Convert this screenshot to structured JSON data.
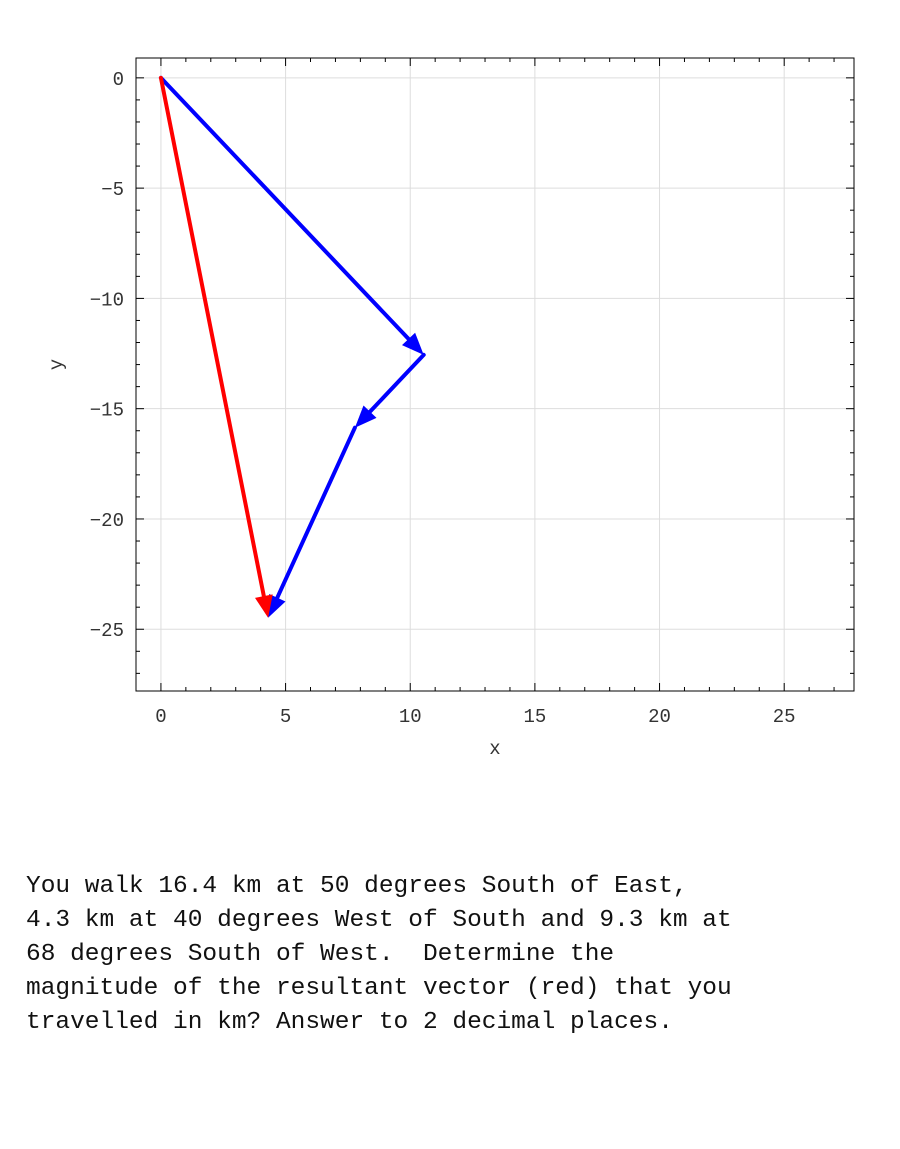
{
  "chart_data": {
    "type": "line",
    "title": "",
    "xlabel": "x",
    "ylabel": "y",
    "xlim": [
      -1,
      27.8
    ],
    "ylim": [
      -27.8,
      0.9
    ],
    "xticks": [
      0,
      5,
      10,
      15,
      20,
      25
    ],
    "yticks": [
      0,
      -5,
      -10,
      -15,
      -20,
      -25
    ],
    "grid": true,
    "series": [
      {
        "color": "#0000ff",
        "style": "arrows",
        "points": [
          [
            0,
            0
          ],
          [
            10.54,
            -12.56
          ],
          [
            7.78,
            -15.86
          ],
          [
            4.3,
            -24.48
          ]
        ]
      },
      {
        "color": "#ff0000",
        "style": "arrow",
        "points": [
          [
            0,
            0
          ],
          [
            4.3,
            -24.48
          ]
        ]
      }
    ]
  },
  "question": {
    "line1": "You walk 16.4 km at 50 degrees South of East,",
    "line2": "4.3 km at 40 degrees West of South and 9.3 km at",
    "line3": "68 degrees South of West.  Determine the",
    "line4": "magnitude of the resultant vector (red) that you",
    "line5": "travelled in km? Answer to 2 decimal places."
  }
}
